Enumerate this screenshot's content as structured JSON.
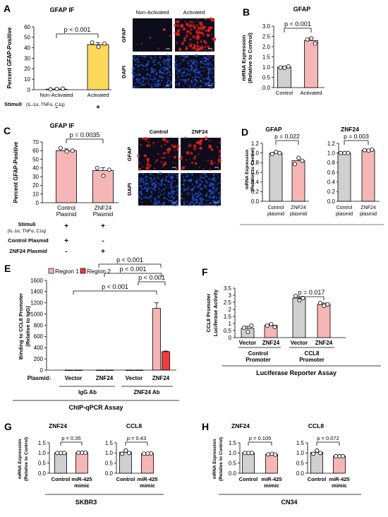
{
  "colors": {
    "control": "#d0d0d0",
    "activated": "#f7b6b6",
    "yellow": "#fcd95a",
    "region1": "#f7b6b6",
    "region2": "#ee3b3b",
    "micro_bg": "#0c0c1a",
    "gfap_red": "#e8201c",
    "dapi_blue": "#1c4fd0"
  },
  "panels": {
    "A": {
      "letter": "A",
      "title": "GFAP IF",
      "ylabel": "Percent GFAP-Positive",
      "yticks": [
        "0",
        "10",
        "20",
        "30",
        "40",
        "50",
        "60"
      ],
      "categories": [
        "Non-Activated",
        "Activated"
      ],
      "pval": "p < 0.001",
      "stim_label": "Stimuli",
      "stim_sub": "(IL-1α, TNFα, C1q)",
      "stim_signs": [
        "-",
        "+"
      ],
      "micro_headers": [
        "Non-Activated",
        "Activated"
      ],
      "micro_rows": [
        "GFAP",
        "DAPI"
      ]
    },
    "B": {
      "letter": "B",
      "title": "GFAP",
      "ylabel": "mRNA Expression",
      "ylabel2": "(Relative to Control)",
      "yticks": [
        "0.0",
        "0.5",
        "1.0",
        "1.5",
        "2.0",
        "2.5",
        "3.0"
      ],
      "categories": [
        "Control",
        "Activated"
      ],
      "pval": "p < 0.001"
    },
    "C": {
      "letter": "C",
      "title": "GFAP IF",
      "ylabel": "Percent GFAP-Positive",
      "yticks": [
        "0",
        "10",
        "20",
        "30",
        "40",
        "50",
        "60",
        "70"
      ],
      "categories": [
        "Control",
        "ZNF24"
      ],
      "categories2": [
        "Plasmid",
        "Plasmid"
      ],
      "pval": "p = 0.0035",
      "rows": [
        {
          "label": "Stimuli",
          "signs": [
            "+",
            "+"
          ]
        },
        {
          "label": "Control Plasmid",
          "signs": [
            "+",
            "-"
          ]
        },
        {
          "label": "ZNF24 Plasmid",
          "signs": [
            "-",
            "+"
          ]
        }
      ],
      "stim_sub": "(IL-1α, TNFα, C1q)",
      "micro_headers": [
        "Control",
        "ZNF24"
      ],
      "micro_rows": [
        "GFAP",
        "DAPI"
      ]
    },
    "D": {
      "letter": "D",
      "ylabel": "mRNA Expression",
      "ylabel2": "(Relative to Control)",
      "yticks": [
        "0.0",
        "0.2",
        "0.4",
        "0.6",
        "0.8",
        "1.0",
        "1.2"
      ],
      "sub": [
        {
          "title": "GFAP",
          "pval": "p = 0.022"
        },
        {
          "title": "ZNF24",
          "pval": "p = 0.003"
        }
      ],
      "categories": [
        "Control",
        "ZNF24"
      ],
      "categories2": [
        "plasmid",
        "plasmid"
      ]
    },
    "E": {
      "letter": "E",
      "ylabel": "Binding to CCL8 Promoter",
      "ylabel2": "(Relative to IgG)",
      "yticks": [
        "0",
        "200",
        "400",
        "600",
        "800",
        "1000",
        "1200",
        "1400",
        "1600"
      ],
      "legend": [
        "Region 1",
        "Region 2"
      ],
      "plasmid_label": "Plasmid:",
      "categories": [
        "Vector",
        "ZNF24",
        "Vector",
        "ZNF24"
      ],
      "groups": [
        "IgG Ab",
        "ZNF24 Ab"
      ],
      "assay": "ChIP-qPCR Assay",
      "pvals": [
        "p < 0.001",
        "p < 0.001",
        "p < 0.001",
        "p < 0.001"
      ]
    },
    "F": {
      "letter": "F",
      "ylabel": "CCL8 Promoter",
      "ylabel2": "Luciferase Activity",
      "yticks": [
        "0",
        "0.5",
        "1",
        "1.5",
        "2",
        "2.5",
        "3",
        "3.5"
      ],
      "categories": [
        "Vector",
        "ZNF24",
        "Vector",
        "ZNF24"
      ],
      "groups": [
        [
          "Control",
          "Promoter"
        ],
        [
          "CCL8",
          "Promoter"
        ]
      ],
      "assay": "Luciferase Reporter Assay",
      "pval": "p = 0.017"
    },
    "G": {
      "letter": "G",
      "ylabel": "mRNA Expression",
      "ylabel2": "(Relative to Control)",
      "yticks": [
        "0.0",
        "0.5",
        "1.0",
        "1.5"
      ],
      "sub": [
        {
          "title": "ZNF24",
          "pval": "p = 0.35"
        },
        {
          "title": "CCL8",
          "pval": "p = 0.43"
        }
      ],
      "categories": [
        "Control",
        "miR-425"
      ],
      "categories2": [
        "",
        "mimic"
      ],
      "cell": "SKBR3"
    },
    "H": {
      "letter": "H",
      "ylabel": "mRNA Expression",
      "ylabel2": "(Relative to Control)",
      "yticks": [
        "0.0",
        "0.5",
        "1.0",
        "1.5"
      ],
      "sub": [
        {
          "title": "ZNF24",
          "pval": "p = 0.105"
        },
        {
          "title": "CCL8",
          "pval": "p = 0.072"
        }
      ],
      "categories": [
        "Control",
        "miR-425"
      ],
      "categories2": [
        "",
        "mimic"
      ],
      "cell": "CN34"
    }
  },
  "chart_data": [
    {
      "type": "bar",
      "panel": "A",
      "title": "GFAP IF",
      "ylabel": "Percent GFAP-Positive",
      "categories": [
        "Non-Activated",
        "Activated"
      ],
      "values": [
        0.5,
        43
      ],
      "points": [
        [
          0.3,
          0.8,
          1.0
        ],
        [
          45,
          41,
          44
        ]
      ],
      "errors": [
        0.3,
        2
      ],
      "ylim": [
        0,
        60
      ]
    },
    {
      "type": "bar",
      "panel": "B",
      "title": "GFAP",
      "ylabel": "mRNA Expression (Relative to Control)",
      "categories": [
        "Control",
        "Activated"
      ],
      "values": [
        1.0,
        2.3
      ],
      "points": [
        [
          0.98,
          0.97,
          1.03
        ],
        [
          2.35,
          2.4,
          2.15
        ]
      ],
      "errors": [
        0.03,
        0.12
      ],
      "ylim": [
        0,
        3
      ]
    },
    {
      "type": "bar",
      "panel": "C",
      "title": "GFAP IF",
      "ylabel": "Percent GFAP-Positive",
      "categories": [
        "Control Plasmid",
        "ZNF24 Plasmid"
      ],
      "values": [
        60,
        37
      ],
      "points": [
        [
          63,
          59,
          60
        ],
        [
          40,
          31,
          38
        ]
      ],
      "errors": [
        2,
        3.5
      ],
      "ylim": [
        0,
        70
      ]
    },
    {
      "type": "bar",
      "panel": "D",
      "title": "GFAP",
      "ylabel": "mRNA Expression (Relative to Control)",
      "categories": [
        "Control plasmid",
        "ZNF24 plasmid"
      ],
      "values": [
        1.0,
        0.84
      ],
      "points": [
        [
          0.98,
          1.02,
          1.0
        ],
        [
          0.77,
          0.9,
          0.84
        ]
      ],
      "errors": [
        0.02,
        0.05
      ],
      "ylim": [
        0,
        1.2
      ]
    },
    {
      "type": "bar",
      "panel": "D",
      "title": "ZNF24",
      "ylabel": "mRNA Expression (Relative to Control)",
      "categories": [
        "Control plasmid",
        "ZNF24 plasmid"
      ],
      "values": [
        1.0,
        1.06
      ],
      "points": [
        [
          1.0,
          1.0,
          1.0
        ],
        [
          1.06,
          1.05,
          1.07
        ]
      ],
      "errors": [
        0.01,
        0.01
      ],
      "ylim": [
        0,
        1.2
      ]
    },
    {
      "type": "bar",
      "panel": "E",
      "ylabel": "Binding to CCL8 Promoter (Relative to IgG)",
      "categories": [
        "IgG Ab Vector",
        "IgG Ab ZNF24",
        "ZNF24 Ab Vector",
        "ZNF24 Ab ZNF24"
      ],
      "series": [
        {
          "name": "Region 1",
          "values": [
            1,
            1,
            1,
            1100
          ],
          "errors": [
            0,
            0,
            0,
            100
          ]
        },
        {
          "name": "Region 2",
          "values": [
            1,
            1,
            1,
            330
          ],
          "errors": [
            0,
            0,
            0,
            10
          ]
        }
      ],
      "ylim": [
        0,
        1600
      ]
    },
    {
      "type": "bar",
      "panel": "F",
      "ylabel": "CCL8 Promoter Luciferase Activity",
      "categories": [
        "Control Promoter Vector",
        "Control Promoter ZNF24",
        "CCL8 Promoter Vector",
        "CCL8 Promoter ZNF24"
      ],
      "values": [
        0.65,
        0.88,
        2.8,
        2.35
      ],
      "points": [
        [
          0.7,
          0.4,
          0.85
        ],
        [
          0.85,
          0.95,
          0.75
        ],
        [
          2.95,
          2.65,
          2.8
        ],
        [
          2.45,
          2.25,
          2.35
        ]
      ],
      "errors": [
        0.15,
        0.07,
        0.1,
        0.1
      ],
      "ylim": [
        0,
        3.5
      ]
    },
    {
      "type": "bar",
      "panel": "G",
      "title": "ZNF24",
      "ylabel": "mRNA Expression (Relative to Control)",
      "categories": [
        "Control",
        "miR-425 mimic"
      ],
      "values": [
        1.0,
        1.02
      ],
      "points": [
        [
          1.0,
          1.0,
          1.0
        ],
        [
          1.01,
          1.01,
          1.02
        ]
      ],
      "errors": [
        0.01,
        0.01
      ],
      "ylim": [
        0,
        1.5
      ]
    },
    {
      "type": "bar",
      "panel": "G",
      "title": "CCL8",
      "ylabel": "mRNA Expression (Relative to Control)",
      "categories": [
        "Control",
        "miR-425 mimic"
      ],
      "values": [
        1.04,
        0.97
      ],
      "points": [
        [
          0.96,
          1.12,
          1.0
        ],
        [
          0.96,
          0.97,
          0.98
        ]
      ],
      "errors": [
        0.05,
        0.01
      ],
      "ylim": [
        0,
        1.5
      ]
    },
    {
      "type": "bar",
      "panel": "H",
      "title": "ZNF24",
      "ylabel": "mRNA Expression (Relative to Control)",
      "categories": [
        "Control",
        "miR-425 mimic"
      ],
      "values": [
        1.0,
        0.93
      ],
      "points": [
        [
          1.0,
          1.0,
          1.0
        ],
        [
          0.93,
          0.96,
          0.92
        ]
      ],
      "errors": [
        0.01,
        0.02
      ],
      "ylim": [
        0,
        1.5
      ]
    },
    {
      "type": "bar",
      "panel": "H",
      "title": "CCL8",
      "ylabel": "mRNA Expression (Relative to Control)",
      "categories": [
        "Control",
        "miR-425 mimic"
      ],
      "values": [
        1.03,
        0.84
      ],
      "points": [
        [
          0.96,
          1.12,
          1.0
        ],
        [
          0.84,
          0.84,
          0.84
        ]
      ],
      "errors": [
        0.06,
        0.005
      ],
      "ylim": [
        0,
        1.5
      ]
    }
  ]
}
